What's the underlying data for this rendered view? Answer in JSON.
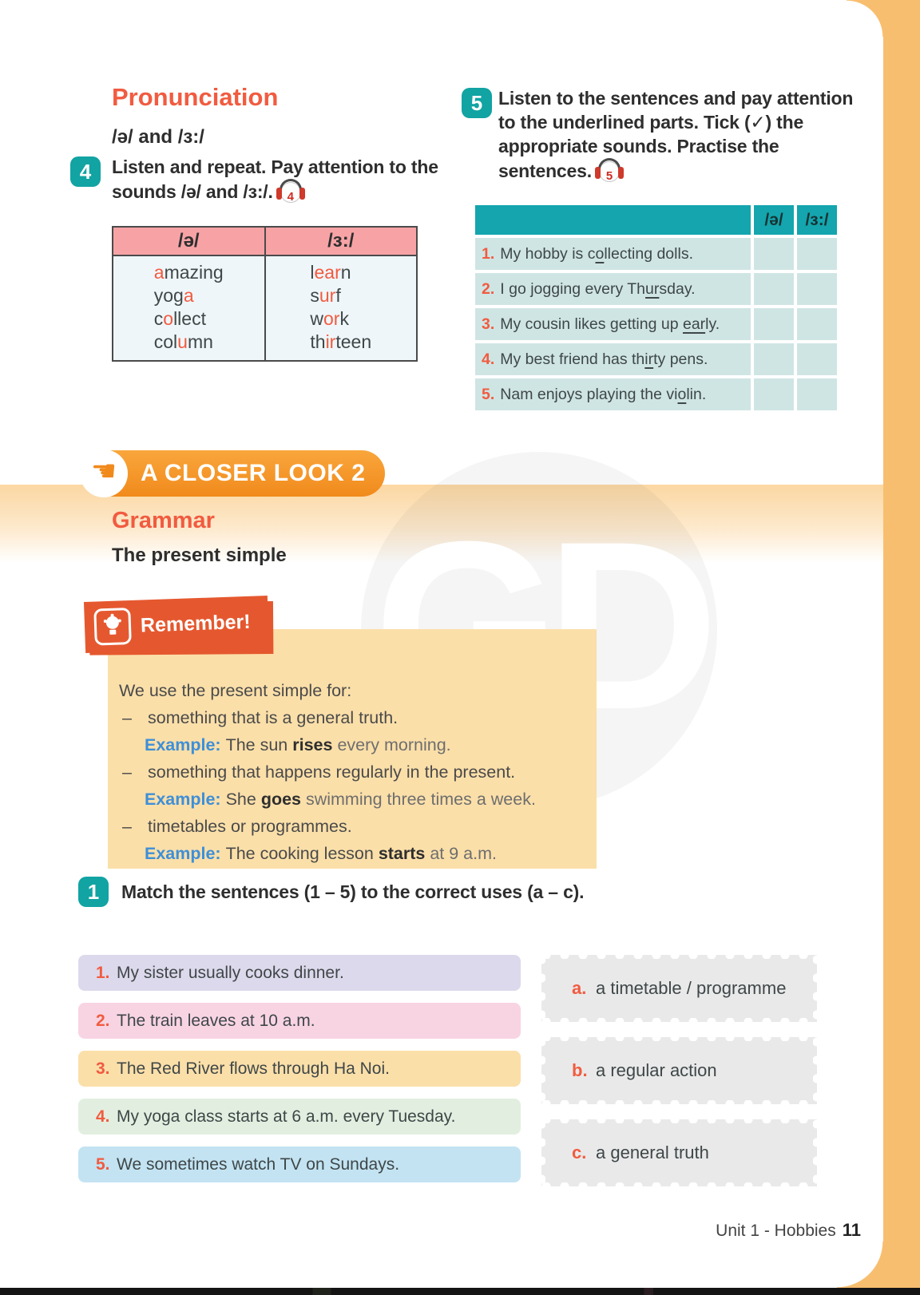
{
  "colors": {
    "accent_red": "#F15B40",
    "badge_teal": "#12A3A3",
    "table_header_teal": "#14A5AE",
    "table_row_teal": "#CFE5E4",
    "words_header_pink": "#F7A3A6",
    "words_body": "#EFF6F9",
    "banner_orange": "#F18A1C",
    "band_orange": "#FBD7A2",
    "edge_band_orange": "#F8BE6F",
    "remember_bg": "#FBDFA9",
    "remember_label_bg": "#E5582F",
    "example_blue": "#3E8FD8"
  },
  "pronunciation": {
    "title": "Pronunciation",
    "subtitle": "/ə/ and /ɜ:/",
    "exercise4": {
      "number": "4",
      "instruction": "Listen and repeat. Pay attention to the sounds /ə/ and /ɜ:/.",
      "audio_number": "4",
      "table": {
        "headers": [
          "/ə/",
          "/ɜ:/"
        ],
        "columns": [
          {
            "words": [
              [
                "",
                "a",
                "mazing"
              ],
              [
                "yog",
                "a",
                ""
              ],
              [
                "c",
                "o",
                "llect"
              ],
              [
                "col",
                "u",
                "mn"
              ]
            ]
          },
          {
            "words": [
              [
                "l",
                "ear",
                "n"
              ],
              [
                "s",
                "ur",
                "f"
              ],
              [
                "w",
                "or",
                "k"
              ],
              [
                "th",
                "ir",
                "teen"
              ]
            ]
          }
        ]
      }
    },
    "exercise5": {
      "number": "5",
      "instruction": "Listen to the sentences and pay attention to the underlined parts. Tick (✓) the appropriate sounds. Practise the sentences.",
      "audio_number": "5",
      "table": {
        "sound_headers": [
          "/ə/",
          "/ɜ:/"
        ],
        "rows": [
          {
            "num": "1.",
            "pre": "My hobby is c",
            "underlined": "o",
            "post": "llecting dolls."
          },
          {
            "num": "2.",
            "pre": "I go jogging every Th",
            "underlined": "ur",
            "post": "sday."
          },
          {
            "num": "3.",
            "pre": "My cousin likes getting up ",
            "underlined": "ear",
            "post": "ly."
          },
          {
            "num": "4.",
            "pre": "My best friend has th",
            "underlined": "ir",
            "post": "ty pens."
          },
          {
            "num": "5.",
            "pre": "Nam enjoys playing the vi",
            "underlined": "o",
            "post": "lin."
          }
        ]
      }
    }
  },
  "closer_look": {
    "banner": "A CLOSER LOOK 2",
    "hand_icon": "☚",
    "section": "Grammar",
    "topic": "The present simple"
  },
  "remember": {
    "label": "Remember!",
    "intro": "We use the present simple for:",
    "dash": "–",
    "example_label": "Example:",
    "points": [
      {
        "use": "something that is a general truth.",
        "example_pre": "The sun ",
        "example_verb": "rises",
        "example_post": " every morning."
      },
      {
        "use": "something that happens regularly in the present.",
        "example_pre": "She ",
        "example_verb": "goes",
        "example_post": " swimming three times a week."
      },
      {
        "use": "timetables or programmes.",
        "example_pre": "The cooking lesson ",
        "example_verb": "starts",
        "example_post": " at 9 a.m."
      }
    ]
  },
  "exercise1": {
    "number": "1",
    "instruction": "Match the sentences (1 – 5) to the correct uses (a – c).",
    "sentences": [
      {
        "num": "1.",
        "text": "My sister usually cooks dinner.",
        "color": "#DDD9EC"
      },
      {
        "num": "2.",
        "text": "The train leaves at 10 a.m.",
        "color": "#F8D4E3"
      },
      {
        "num": "3.",
        "text": "The Red River flows through Ha Noi.",
        "color": "#FBDFA9"
      },
      {
        "num": "4.",
        "text": "My yoga class starts at 6 a.m. every Tuesday.",
        "color": "#E2EFE0"
      },
      {
        "num": "5.",
        "text": "We sometimes watch TV on Sundays.",
        "color": "#C3E3F2"
      }
    ],
    "uses": [
      {
        "letter": "a.",
        "text": "a timetable / programme"
      },
      {
        "letter": "b.",
        "text": "a regular action"
      },
      {
        "letter": "c.",
        "text": "a general truth"
      }
    ]
  },
  "footer": {
    "unit_label": "Unit 1 - Hobbies",
    "page_number": "11"
  },
  "watermark": "GD"
}
